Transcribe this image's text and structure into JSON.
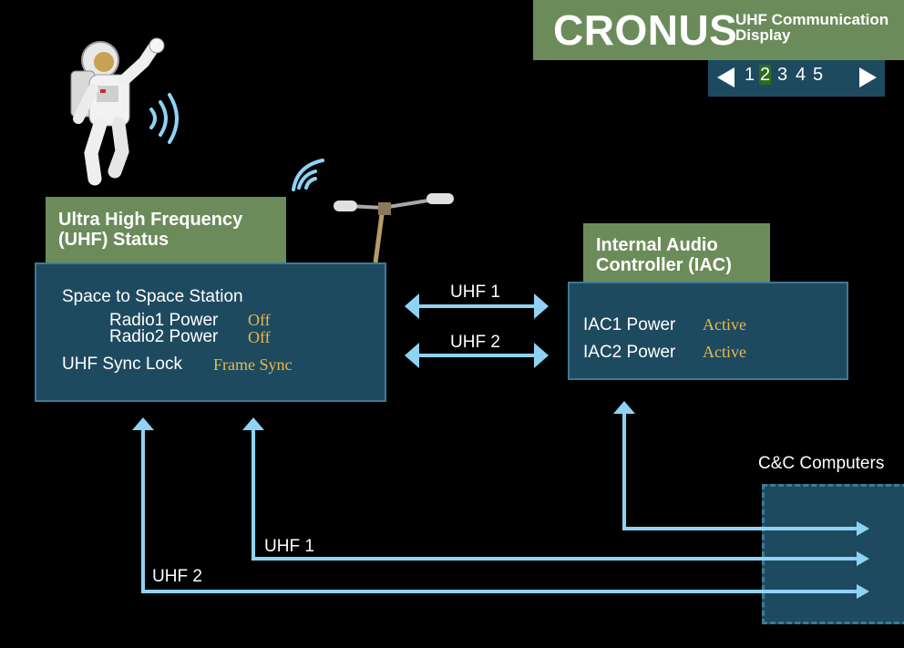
{
  "header": {
    "title": "CRONUS",
    "subtitle_line1": "UHF Communication",
    "subtitle_line2": "Display"
  },
  "pager": {
    "pages": [
      "1",
      "2",
      "3",
      "4",
      "5"
    ],
    "current_page": "2",
    "prev_icon": "triangle-left-icon",
    "next_icon": "triangle-right-icon"
  },
  "uhf_panel": {
    "title_line1": "Ultra High Frequency",
    "title_line2": "(UHF) Status",
    "section": "Space to Space Station",
    "radio1_label": "Radio1 Power",
    "radio1_value": "Off",
    "radio2_label": "Radio2 Power",
    "radio2_value": "Off",
    "sync_label": "UHF Sync Lock",
    "sync_value": "Frame Sync"
  },
  "iac_panel": {
    "title_line1": "Internal Audio",
    "title_line2": "Controller (IAC)",
    "iac1_label": "IAC1 Power",
    "iac1_value": "Active",
    "iac2_label": "IAC2 Power",
    "iac2_value": "Active"
  },
  "links": {
    "uhf1_top": "UHF 1",
    "uhf2_top": "UHF 2",
    "uhf1_bottom": "UHF 1",
    "uhf2_bottom": "UHF 2"
  },
  "cc": {
    "label": "C&C Computers"
  },
  "colors": {
    "panel_bg": "#1e4a60",
    "label_green": "#6b8c5a",
    "link_blue": "#8fd3f4",
    "value_amber": "#e8b84a"
  }
}
